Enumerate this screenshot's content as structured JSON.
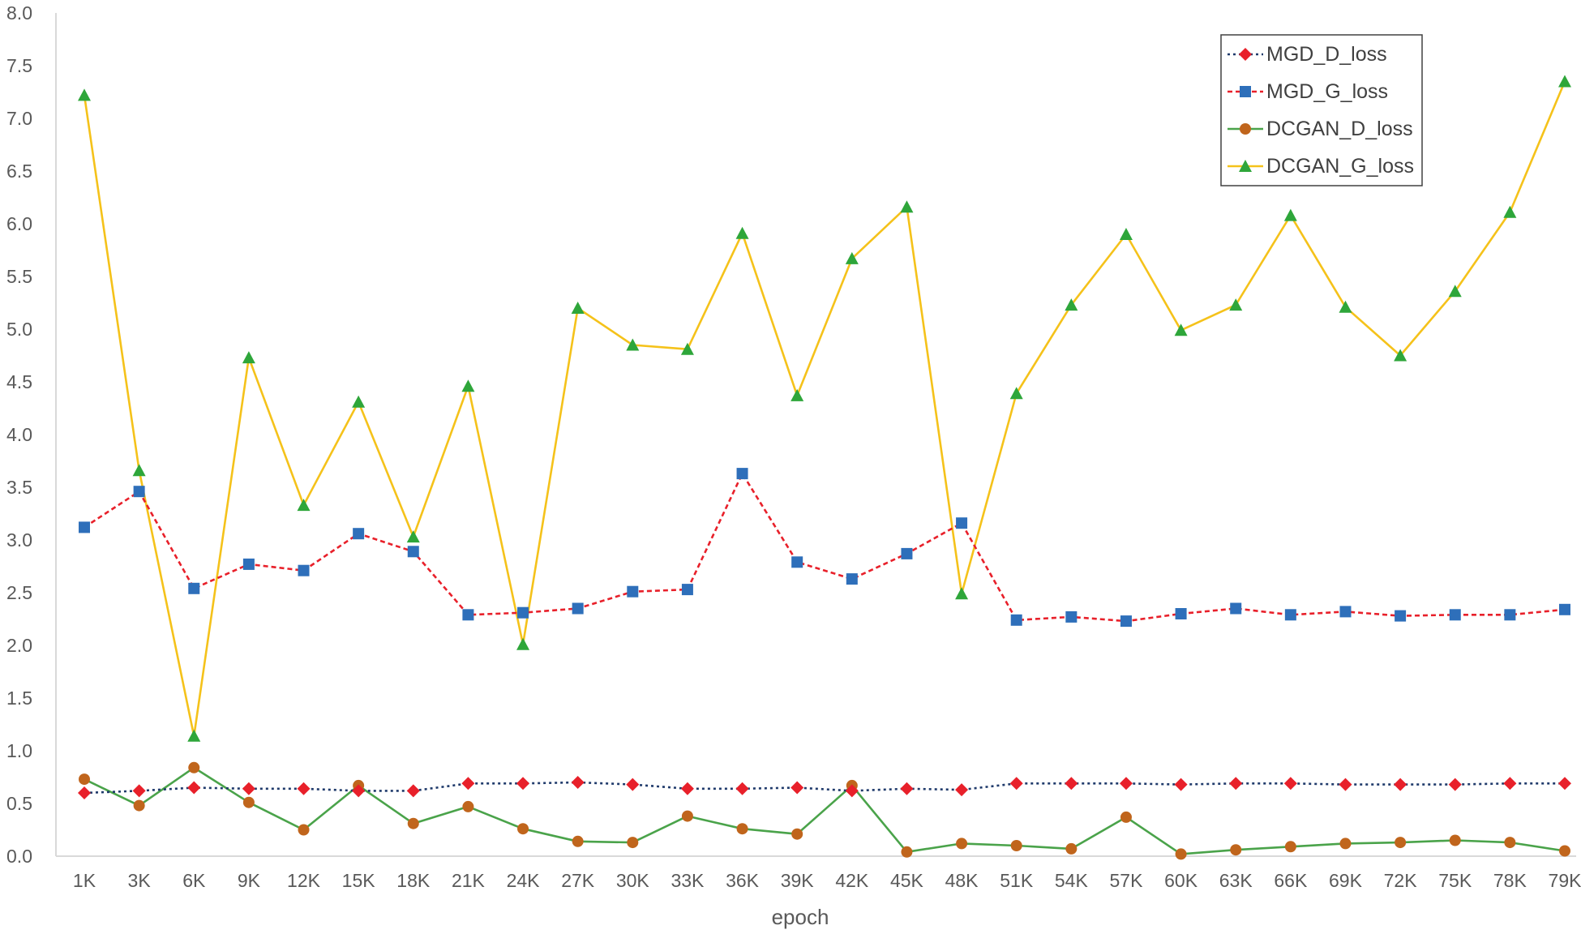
{
  "chart_data": {
    "type": "line",
    "title": "",
    "xlabel": "epoch",
    "ylabel": "",
    "ylim": [
      0,
      8
    ],
    "yticks": [
      "0.0",
      "0.5",
      "1.0",
      "1.5",
      "2.0",
      "2.5",
      "3.0",
      "3.5",
      "4.0",
      "4.5",
      "5.0",
      "5.5",
      "6.0",
      "6.5",
      "7.0",
      "7.5",
      "8.0"
    ],
    "categories": [
      "1K",
      "3K",
      "6K",
      "9K",
      "12K",
      "15K",
      "18K",
      "21K",
      "24K",
      "27K",
      "30K",
      "33K",
      "36K",
      "39K",
      "42K",
      "45K",
      "48K",
      "51K",
      "54K",
      "57K",
      "60K",
      "63K",
      "66K",
      "69K",
      "72K",
      "75K",
      "78K",
      "79K"
    ],
    "legend_position": "top-right",
    "grid": false,
    "series": [
      {
        "name": "MGD_D_loss",
        "line_color": "#1f3a6b",
        "marker_color": "#e8202a",
        "marker": "diamond",
        "dash": "dotted",
        "values": [
          0.6,
          0.62,
          0.65,
          0.64,
          0.64,
          0.62,
          0.62,
          0.69,
          0.69,
          0.7,
          0.68,
          0.64,
          0.64,
          0.65,
          0.62,
          0.64,
          0.63,
          0.69,
          0.69,
          0.69,
          0.68,
          0.69,
          0.69,
          0.68,
          0.68,
          0.68,
          0.69,
          0.69
        ]
      },
      {
        "name": "MGD_G_loss",
        "line_color": "#e8202a",
        "marker_color": "#2e6fba",
        "marker": "square",
        "dash": "dashed",
        "values": [
          3.12,
          3.46,
          2.54,
          2.77,
          2.71,
          3.06,
          2.89,
          2.29,
          2.31,
          2.35,
          2.51,
          2.53,
          3.63,
          2.79,
          2.63,
          2.87,
          3.16,
          2.24,
          2.27,
          2.23,
          2.3,
          2.35,
          2.29,
          2.32,
          2.28,
          2.29,
          2.29,
          2.34
        ]
      },
      {
        "name": "DCGAN_D_loss",
        "line_color": "#4aa34a",
        "marker_color": "#c0651c",
        "marker": "circle",
        "dash": "solid",
        "values": [
          0.73,
          0.48,
          0.84,
          0.51,
          0.25,
          0.67,
          0.31,
          0.47,
          0.26,
          0.14,
          0.13,
          0.38,
          0.26,
          0.21,
          0.67,
          0.04,
          0.12,
          0.1,
          0.07,
          0.37,
          0.02,
          0.06,
          0.09,
          0.12,
          0.13,
          0.15,
          0.13,
          0.05
        ]
      },
      {
        "name": "DCGAN_G_loss",
        "line_color": "#f5c21a",
        "marker_color": "#2ea63a",
        "marker": "triangle",
        "dash": "solid",
        "values": [
          7.22,
          3.66,
          1.14,
          4.73,
          3.33,
          4.31,
          3.03,
          4.46,
          2.01,
          5.2,
          4.85,
          4.81,
          5.91,
          4.37,
          5.67,
          6.16,
          2.49,
          4.39,
          5.23,
          5.9,
          4.99,
          5.23,
          6.08,
          5.21,
          4.75,
          5.36,
          6.11,
          7.35
        ]
      }
    ]
  }
}
